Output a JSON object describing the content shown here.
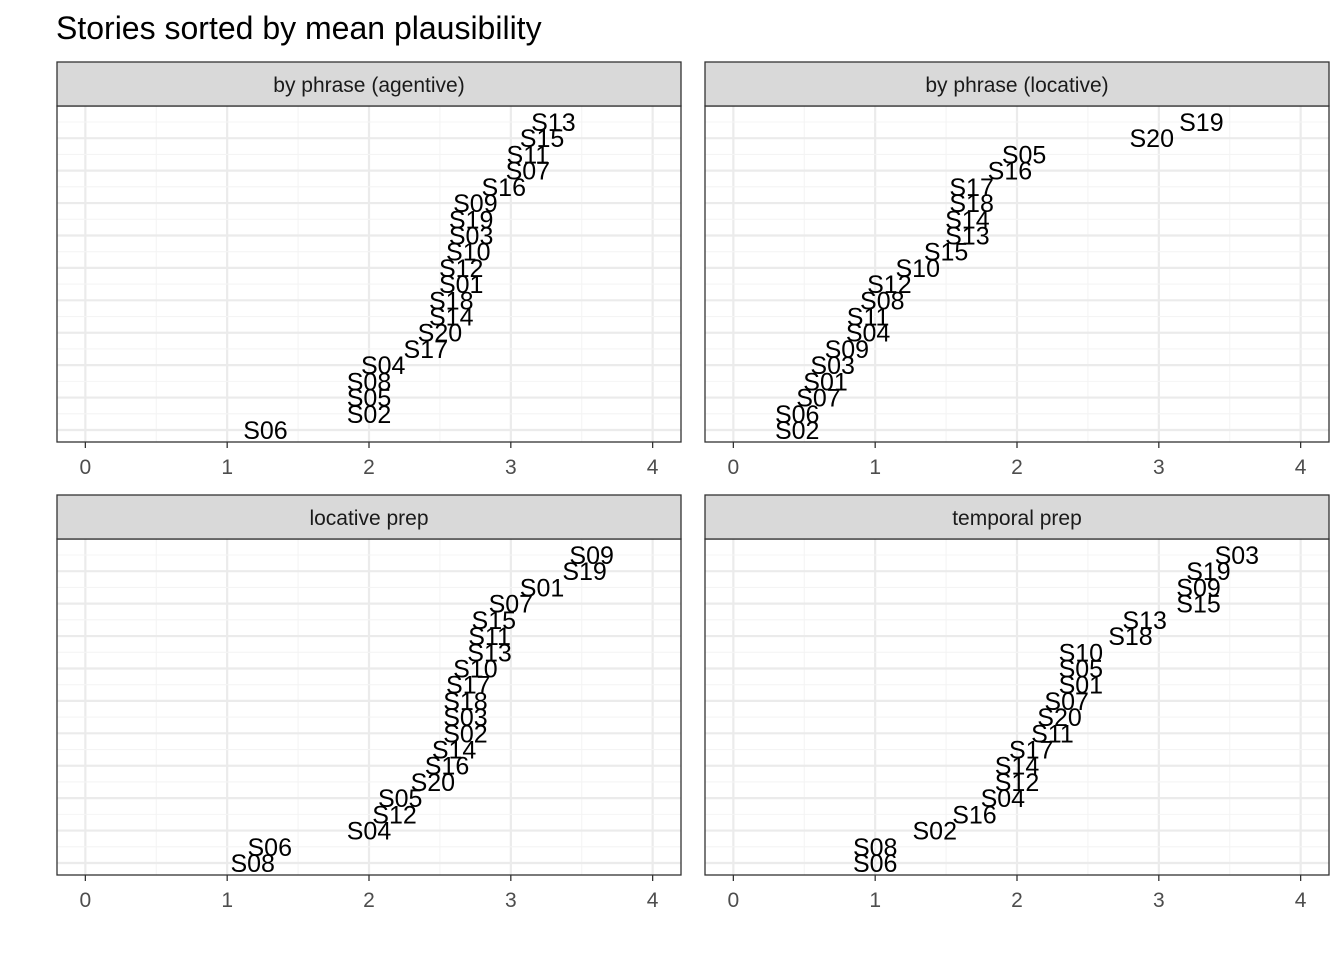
{
  "chart_data": {
    "type": "scatter",
    "title": "Stories sorted by mean plausibility",
    "xlabel": "",
    "ylabel": "",
    "xlim": [
      -0.2,
      4.2
    ],
    "xticks": [
      0,
      1,
      2,
      3,
      4
    ],
    "grid": true,
    "legend": "none",
    "colors": {
      "strip_fill": "#d9d9d9",
      "strip_border": "#333333",
      "panel_border": "#333333",
      "grid_major": "#ebebeb",
      "grid_minor": "#f4f4f4",
      "label": "#000000",
      "tick_label": "#4d4d4d"
    },
    "panels": [
      {
        "name": "by phrase (agentive)",
        "points": [
          {
            "label": "S06",
            "x": 1.27
          },
          {
            "label": "S02",
            "x": 2.0
          },
          {
            "label": "S05",
            "x": 2.0
          },
          {
            "label": "S08",
            "x": 2.0
          },
          {
            "label": "S04",
            "x": 2.1
          },
          {
            "label": "S17",
            "x": 2.4
          },
          {
            "label": "S20",
            "x": 2.5
          },
          {
            "label": "S14",
            "x": 2.58
          },
          {
            "label": "S18",
            "x": 2.58
          },
          {
            "label": "S01",
            "x": 2.65
          },
          {
            "label": "S12",
            "x": 2.65
          },
          {
            "label": "S10",
            "x": 2.7
          },
          {
            "label": "S03",
            "x": 2.72
          },
          {
            "label": "S19",
            "x": 2.72
          },
          {
            "label": "S09",
            "x": 2.75
          },
          {
            "label": "S16",
            "x": 2.95
          },
          {
            "label": "S07",
            "x": 3.12
          },
          {
            "label": "S11",
            "x": 3.12
          },
          {
            "label": "S15",
            "x": 3.22
          },
          {
            "label": "S13",
            "x": 3.3
          }
        ]
      },
      {
        "name": "by phrase (locative)",
        "points": [
          {
            "label": "S02",
            "x": 0.45
          },
          {
            "label": "S06",
            "x": 0.45
          },
          {
            "label": "S07",
            "x": 0.6
          },
          {
            "label": "S01",
            "x": 0.65
          },
          {
            "label": "S03",
            "x": 0.7
          },
          {
            "label": "S09",
            "x": 0.8
          },
          {
            "label": "S04",
            "x": 0.95
          },
          {
            "label": "S11",
            "x": 0.95
          },
          {
            "label": "S08",
            "x": 1.05
          },
          {
            "label": "S12",
            "x": 1.1
          },
          {
            "label": "S10",
            "x": 1.3
          },
          {
            "label": "S15",
            "x": 1.5
          },
          {
            "label": "S13",
            "x": 1.65
          },
          {
            "label": "S14",
            "x": 1.65
          },
          {
            "label": "S18",
            "x": 1.68
          },
          {
            "label": "S17",
            "x": 1.68
          },
          {
            "label": "S16",
            "x": 1.95
          },
          {
            "label": "S05",
            "x": 2.05
          },
          {
            "label": "S20",
            "x": 2.95
          },
          {
            "label": "S19",
            "x": 3.3
          }
        ]
      },
      {
        "name": "locative prep",
        "points": [
          {
            "label": "S08",
            "x": 1.18
          },
          {
            "label": "S06",
            "x": 1.3
          },
          {
            "label": "S04",
            "x": 2.0
          },
          {
            "label": "S12",
            "x": 2.18
          },
          {
            "label": "S05",
            "x": 2.22
          },
          {
            "label": "S20",
            "x": 2.45
          },
          {
            "label": "S16",
            "x": 2.55
          },
          {
            "label": "S14",
            "x": 2.6
          },
          {
            "label": "S02",
            "x": 2.68
          },
          {
            "label": "S03",
            "x": 2.68
          },
          {
            "label": "S18",
            "x": 2.68
          },
          {
            "label": "S17",
            "x": 2.7
          },
          {
            "label": "S10",
            "x": 2.75
          },
          {
            "label": "S13",
            "x": 2.85
          },
          {
            "label": "S11",
            "x": 2.85
          },
          {
            "label": "S15",
            "x": 2.88
          },
          {
            "label": "S07",
            "x": 3.0
          },
          {
            "label": "S01",
            "x": 3.22
          },
          {
            "label": "S19",
            "x": 3.52
          },
          {
            "label": "S09",
            "x": 3.57
          }
        ]
      },
      {
        "name": "temporal prep",
        "points": [
          {
            "label": "S06",
            "x": 1.0
          },
          {
            "label": "S08",
            "x": 1.0
          },
          {
            "label": "S02",
            "x": 1.42
          },
          {
            "label": "S16",
            "x": 1.7
          },
          {
            "label": "S04",
            "x": 1.9
          },
          {
            "label": "S12",
            "x": 2.0
          },
          {
            "label": "S14",
            "x": 2.0
          },
          {
            "label": "S17",
            "x": 2.1
          },
          {
            "label": "S11",
            "x": 2.25
          },
          {
            "label": "S20",
            "x": 2.3
          },
          {
            "label": "S07",
            "x": 2.35
          },
          {
            "label": "S01",
            "x": 2.45
          },
          {
            "label": "S05",
            "x": 2.45
          },
          {
            "label": "S10",
            "x": 2.45
          },
          {
            "label": "S18",
            "x": 2.8
          },
          {
            "label": "S13",
            "x": 2.9
          },
          {
            "label": "S15",
            "x": 3.28
          },
          {
            "label": "S09",
            "x": 3.28
          },
          {
            "label": "S19",
            "x": 3.35
          },
          {
            "label": "S03",
            "x": 3.55
          }
        ]
      }
    ]
  }
}
